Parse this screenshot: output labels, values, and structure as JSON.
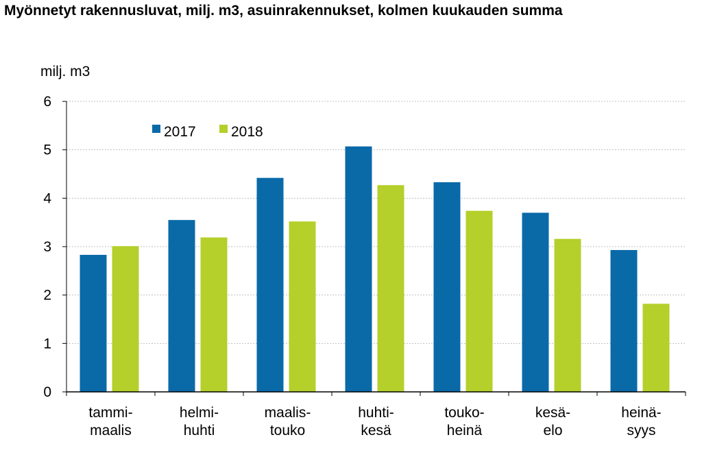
{
  "chart_data": {
    "type": "bar",
    "title": "Myönnetyt rakennusluvat, milj. m3, asuinrakennukset, kolmen kuukauden summa",
    "ylabel": "milj. m3",
    "xlabel": "",
    "ylim": [
      0,
      6
    ],
    "yticks": [
      "0",
      "1",
      "2",
      "3",
      "4",
      "5",
      "6"
    ],
    "categories": [
      [
        "tammi-",
        "maalis"
      ],
      [
        "helmi-",
        "huhti"
      ],
      [
        "maalis-",
        "touko"
      ],
      [
        "huhti-",
        "kesä"
      ],
      [
        "touko-",
        "heinä"
      ],
      [
        "kesä-",
        "elo"
      ],
      [
        "heinä-",
        "syys"
      ]
    ],
    "series": [
      {
        "name": "2017",
        "color": "#0a6aa8",
        "values": [
          2.83,
          3.55,
          4.42,
          5.07,
          4.33,
          3.7,
          2.93
        ]
      },
      {
        "name": "2018",
        "color": "#b5cf2b",
        "values": [
          3.01,
          3.19,
          3.52,
          4.27,
          3.74,
          3.16,
          1.82
        ]
      }
    ],
    "grid": true,
    "grid_color": "#bfbfbf",
    "legend_position": "top-left"
  }
}
